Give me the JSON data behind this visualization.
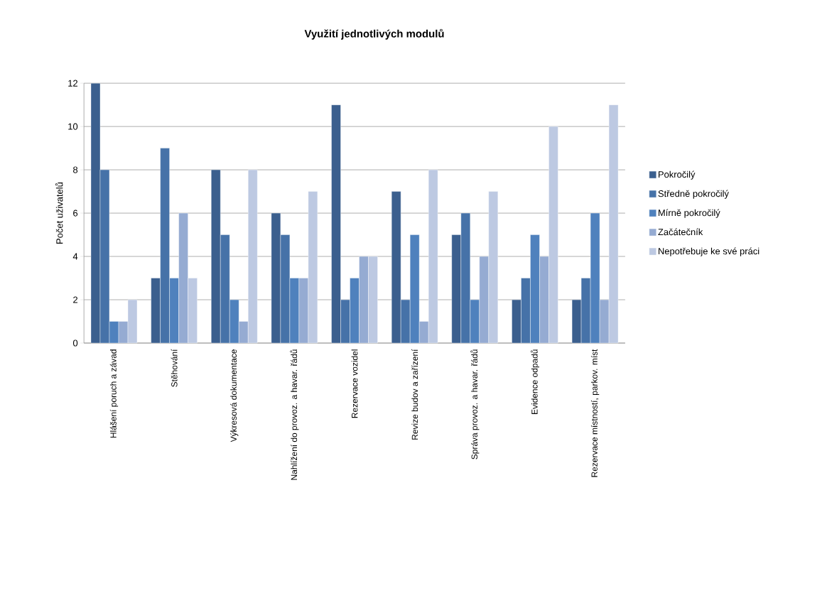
{
  "chart_data": {
    "type": "bar",
    "title": "Využití jednotlivých modulů",
    "ylabel": "Počet uživatelů",
    "categories": [
      "Hlášení poruch a závad",
      "Stěhování",
      "Výkresová dokumentace",
      "Nahlížení do provoz. a havar. řádů",
      "Rezervace vozidel",
      "Revize budov a zařízení",
      "Správa provoz. a havar. řádů",
      "Evidence odpadů",
      "Rezervace místností, parkov. míst"
    ],
    "series": [
      {
        "name": "Pokročilý",
        "color": "#3b5f8e",
        "values": [
          12,
          3,
          8,
          6,
          11,
          7,
          5,
          2,
          2
        ]
      },
      {
        "name": "Středně pokročilý",
        "color": "#4672a8",
        "values": [
          8,
          9,
          5,
          5,
          2,
          2,
          6,
          3,
          3
        ]
      },
      {
        "name": "Mírně pokročilý",
        "color": "#4f81bd",
        "values": [
          1,
          3,
          2,
          3,
          3,
          5,
          2,
          5,
          6
        ]
      },
      {
        "name": "Začátečník",
        "color": "#95abd2",
        "values": [
          1,
          6,
          1,
          3,
          4,
          1,
          4,
          4,
          2
        ]
      },
      {
        "name": "Nepotřebuje ke své práci",
        "color": "#bdc9e2",
        "values": [
          2,
          3,
          8,
          7,
          4,
          8,
          7,
          10,
          11
        ]
      }
    ],
    "ylim": [
      0,
      12
    ],
    "yticks": [
      0,
      2,
      4,
      6,
      8,
      10,
      12
    ],
    "grid": "y",
    "legend": "right"
  }
}
